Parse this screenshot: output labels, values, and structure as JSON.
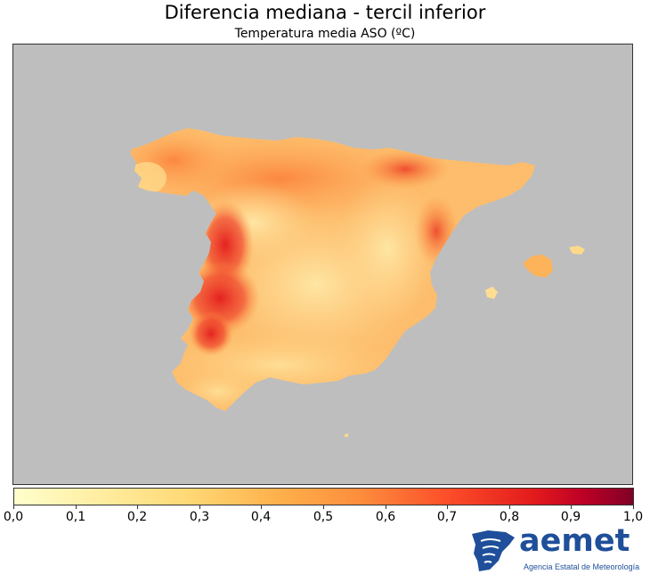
{
  "title": "Diferencia mediana - tercil inferior",
  "subtitle": "Temperatura media ASO (ºC)",
  "map": {
    "background_color": "#bebebe",
    "region": "Península Ibérica e Islas Baleares",
    "color_scale": [
      "#ffffcc",
      "#ffeda0",
      "#fed976",
      "#feb24c",
      "#fd8d3c",
      "#fc4e2a",
      "#e31a1c",
      "#bd0026",
      "#800026"
    ]
  },
  "colorbar": {
    "min": 0.0,
    "max": 1.0,
    "ticks": [
      "0,0",
      "0,1",
      "0,2",
      "0,3",
      "0,4",
      "0,5",
      "0,6",
      "0,7",
      "0,8",
      "0,9",
      "1,0"
    ]
  },
  "logo": {
    "word": "aemet",
    "subtitle": "Agencia Estatal de Meteorología",
    "color": "#1f4f9a"
  }
}
